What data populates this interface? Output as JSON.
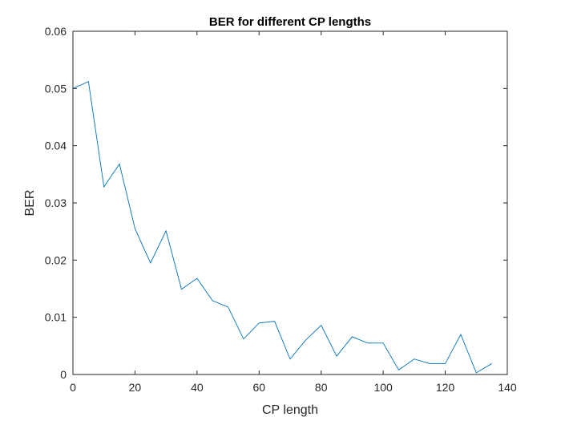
{
  "chart_data": {
    "type": "line",
    "title": "BER for different CP lengths",
    "xlabel": "CP length",
    "ylabel": "BER",
    "xlim": [
      0,
      140
    ],
    "ylim": [
      0,
      0.06
    ],
    "xticks": [
      0,
      20,
      40,
      60,
      80,
      100,
      120,
      140
    ],
    "yticks": [
      0,
      0.01,
      0.02,
      0.03,
      0.04,
      0.05,
      0.06
    ],
    "xtick_labels": [
      "0",
      "20",
      "40",
      "60",
      "80",
      "100",
      "120",
      "140"
    ],
    "ytick_labels": [
      "0",
      "0.01",
      "0.02",
      "0.03",
      "0.04",
      "0.05",
      "0.06"
    ],
    "grid": false,
    "box": true,
    "series": [
      {
        "color": "#0072BD",
        "x": [
          0,
          5,
          10,
          15,
          20,
          25,
          30,
          35,
          40,
          45,
          50,
          55,
          60,
          65,
          70,
          75,
          80,
          85,
          90,
          95,
          100,
          105,
          110,
          115,
          120,
          125,
          130,
          135
        ],
        "y": [
          0.05,
          0.0512,
          0.0328,
          0.0368,
          0.0255,
          0.0195,
          0.0251,
          0.0149,
          0.0168,
          0.0129,
          0.0118,
          0.0062,
          0.009,
          0.0093,
          0.0027,
          0.006,
          0.0086,
          0.0032,
          0.0066,
          0.0055,
          0.0055,
          0.0008,
          0.0027,
          0.0019,
          0.0019,
          0.007,
          0.0003,
          0.0019
        ]
      }
    ]
  }
}
